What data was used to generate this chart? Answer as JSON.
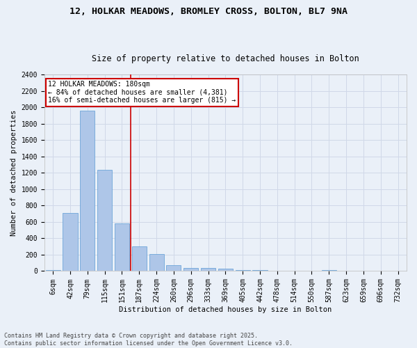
{
  "title_line1": "12, HOLKAR MEADOWS, BROMLEY CROSS, BOLTON, BL7 9NA",
  "title_line2": "Size of property relative to detached houses in Bolton",
  "xlabel": "Distribution of detached houses by size in Bolton",
  "ylabel": "Number of detached properties",
  "bar_labels": [
    "6sqm",
    "42sqm",
    "79sqm",
    "115sqm",
    "151sqm",
    "187sqm",
    "224sqm",
    "260sqm",
    "296sqm",
    "333sqm",
    "369sqm",
    "405sqm",
    "442sqm",
    "478sqm",
    "514sqm",
    "550sqm",
    "587sqm",
    "623sqm",
    "659sqm",
    "696sqm",
    "732sqm"
  ],
  "bar_values": [
    15,
    710,
    1960,
    1240,
    580,
    305,
    205,
    75,
    40,
    35,
    32,
    15,
    12,
    8,
    0,
    0,
    10,
    0,
    0,
    0,
    0
  ],
  "bar_color": "#aec6e8",
  "bar_edge_color": "#5b9bd5",
  "grid_color": "#d0d8e8",
  "background_color": "#eaf0f8",
  "annotation_text": "12 HOLKAR MEADOWS: 180sqm\n← 84% of detached houses are smaller (4,381)\n16% of semi-detached houses are larger (815) →",
  "annotation_box_color": "#ffffff",
  "annotation_box_edge_color": "#cc0000",
  "vline_color": "#cc0000",
  "ylim": [
    0,
    2400
  ],
  "yticks": [
    0,
    200,
    400,
    600,
    800,
    1000,
    1200,
    1400,
    1600,
    1800,
    2000,
    2200,
    2400
  ],
  "footnote": "Contains HM Land Registry data © Crown copyright and database right 2025.\nContains public sector information licensed under the Open Government Licence v3.0.",
  "title_fontsize": 9.5,
  "subtitle_fontsize": 8.5,
  "axis_label_fontsize": 7.5,
  "tick_fontsize": 7,
  "annotation_fontsize": 7,
  "footnote_fontsize": 6
}
